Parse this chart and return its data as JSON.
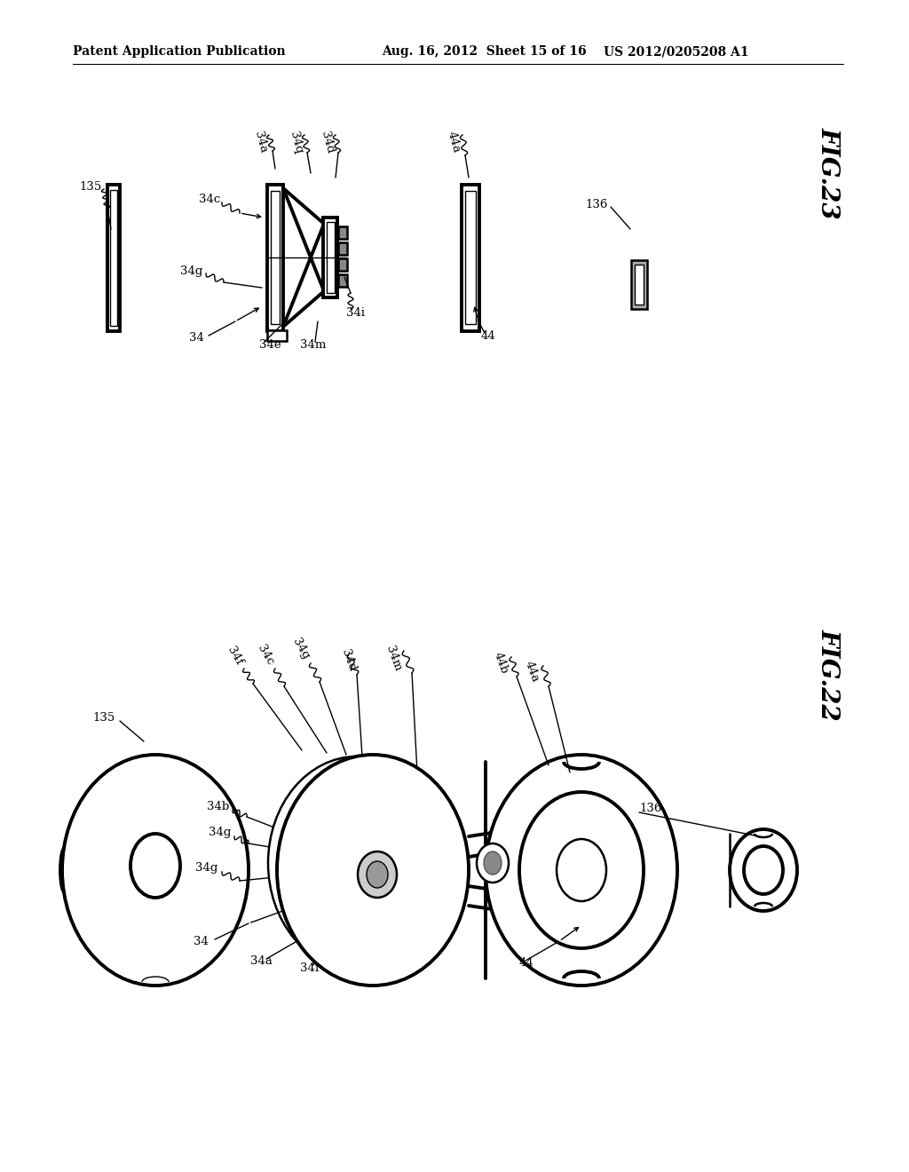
{
  "header_left": "Patent Application Publication",
  "header_mid": "Aug. 16, 2012  Sheet 15 of 16",
  "header_right": "US 2012/0205208 A1",
  "fig23_title": "FIG.23",
  "fig22_title": "FIG.22",
  "bg_color": "#ffffff",
  "line_color": "#000000",
  "lw_thin": 1.0,
  "lw_med": 1.8,
  "lw_thick": 2.8,
  "header_fontsize": 10,
  "label_fontsize": 9.5,
  "fig_title_fontsize": 20
}
